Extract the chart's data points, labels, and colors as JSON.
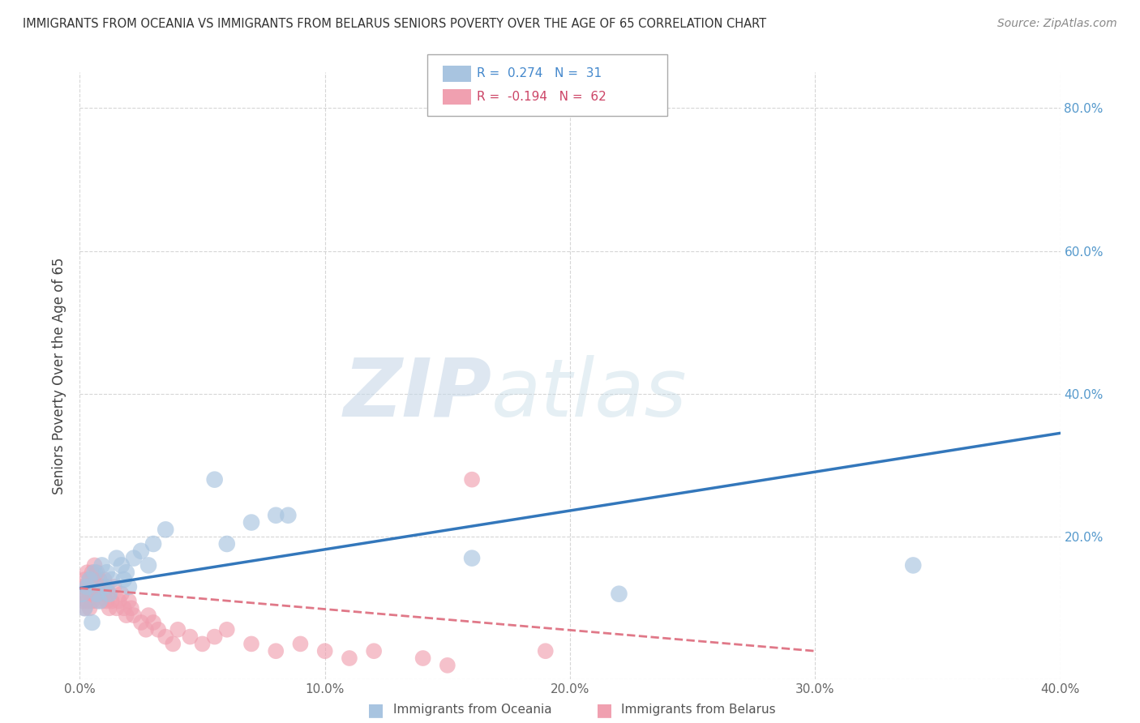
{
  "title": "IMMIGRANTS FROM OCEANIA VS IMMIGRANTS FROM BELARUS SENIORS POVERTY OVER THE AGE OF 65 CORRELATION CHART",
  "source": "Source: ZipAtlas.com",
  "ylabel": "Seniors Poverty Over the Age of 65",
  "xlim": [
    0.0,
    0.4
  ],
  "ylim": [
    0.0,
    0.85
  ],
  "xticks": [
    0.0,
    0.1,
    0.2,
    0.3,
    0.4
  ],
  "yticks": [
    0.0,
    0.2,
    0.4,
    0.6,
    0.8
  ],
  "right_ytick_labels": [
    "",
    "20.0%",
    "40.0%",
    "60.0%",
    "80.0%"
  ],
  "xtick_labels": [
    "0.0%",
    "",
    "10.0%",
    "",
    "20.0%",
    "",
    "30.0%",
    "",
    "40.0%"
  ],
  "grid_color": "#cccccc",
  "background_color": "#ffffff",
  "legend1_r": "0.274",
  "legend1_n": "31",
  "legend2_r": "-0.194",
  "legend2_n": "62",
  "oceania_color": "#a8c4e0",
  "belarus_color": "#f0a0b0",
  "oceania_line_color": "#3377bb",
  "belarus_line_color": "#e07888",
  "oceania_x": [
    0.001,
    0.002,
    0.003,
    0.004,
    0.005,
    0.006,
    0.007,
    0.008,
    0.009,
    0.01,
    0.011,
    0.012,
    0.013,
    0.015,
    0.017,
    0.018,
    0.019,
    0.02,
    0.022,
    0.025,
    0.028,
    0.03,
    0.035,
    0.055,
    0.06,
    0.07,
    0.08,
    0.085,
    0.16,
    0.22,
    0.34
  ],
  "oceania_y": [
    0.12,
    0.1,
    0.13,
    0.14,
    0.08,
    0.15,
    0.12,
    0.11,
    0.16,
    0.13,
    0.15,
    0.12,
    0.14,
    0.17,
    0.16,
    0.14,
    0.15,
    0.13,
    0.17,
    0.18,
    0.16,
    0.19,
    0.21,
    0.28,
    0.19,
    0.22,
    0.23,
    0.23,
    0.17,
    0.12,
    0.16
  ],
  "belarus_x": [
    0.001,
    0.001,
    0.002,
    0.002,
    0.002,
    0.003,
    0.003,
    0.003,
    0.004,
    0.004,
    0.004,
    0.005,
    0.005,
    0.005,
    0.006,
    0.006,
    0.006,
    0.007,
    0.007,
    0.007,
    0.008,
    0.008,
    0.009,
    0.009,
    0.01,
    0.01,
    0.011,
    0.011,
    0.012,
    0.012,
    0.013,
    0.014,
    0.015,
    0.016,
    0.017,
    0.018,
    0.019,
    0.02,
    0.021,
    0.022,
    0.025,
    0.027,
    0.028,
    0.03,
    0.032,
    0.035,
    0.038,
    0.04,
    0.045,
    0.05,
    0.055,
    0.06,
    0.07,
    0.08,
    0.09,
    0.1,
    0.11,
    0.12,
    0.14,
    0.15,
    0.16,
    0.19
  ],
  "belarus_y": [
    0.11,
    0.13,
    0.12,
    0.14,
    0.1,
    0.11,
    0.13,
    0.15,
    0.12,
    0.14,
    0.1,
    0.11,
    0.13,
    0.15,
    0.12,
    0.14,
    0.16,
    0.11,
    0.13,
    0.15,
    0.12,
    0.14,
    0.11,
    0.13,
    0.12,
    0.14,
    0.11,
    0.13,
    0.12,
    0.1,
    0.11,
    0.13,
    0.1,
    0.11,
    0.12,
    0.1,
    0.09,
    0.11,
    0.1,
    0.09,
    0.08,
    0.07,
    0.09,
    0.08,
    0.07,
    0.06,
    0.05,
    0.07,
    0.06,
    0.05,
    0.06,
    0.07,
    0.05,
    0.04,
    0.05,
    0.04,
    0.03,
    0.04,
    0.03,
    0.02,
    0.28,
    0.04
  ],
  "oceania_line_x": [
    0.0,
    0.4
  ],
  "oceania_line_y": [
    0.128,
    0.345
  ],
  "belarus_line_x": [
    0.0,
    0.3
  ],
  "belarus_line_y": [
    0.128,
    0.04
  ]
}
